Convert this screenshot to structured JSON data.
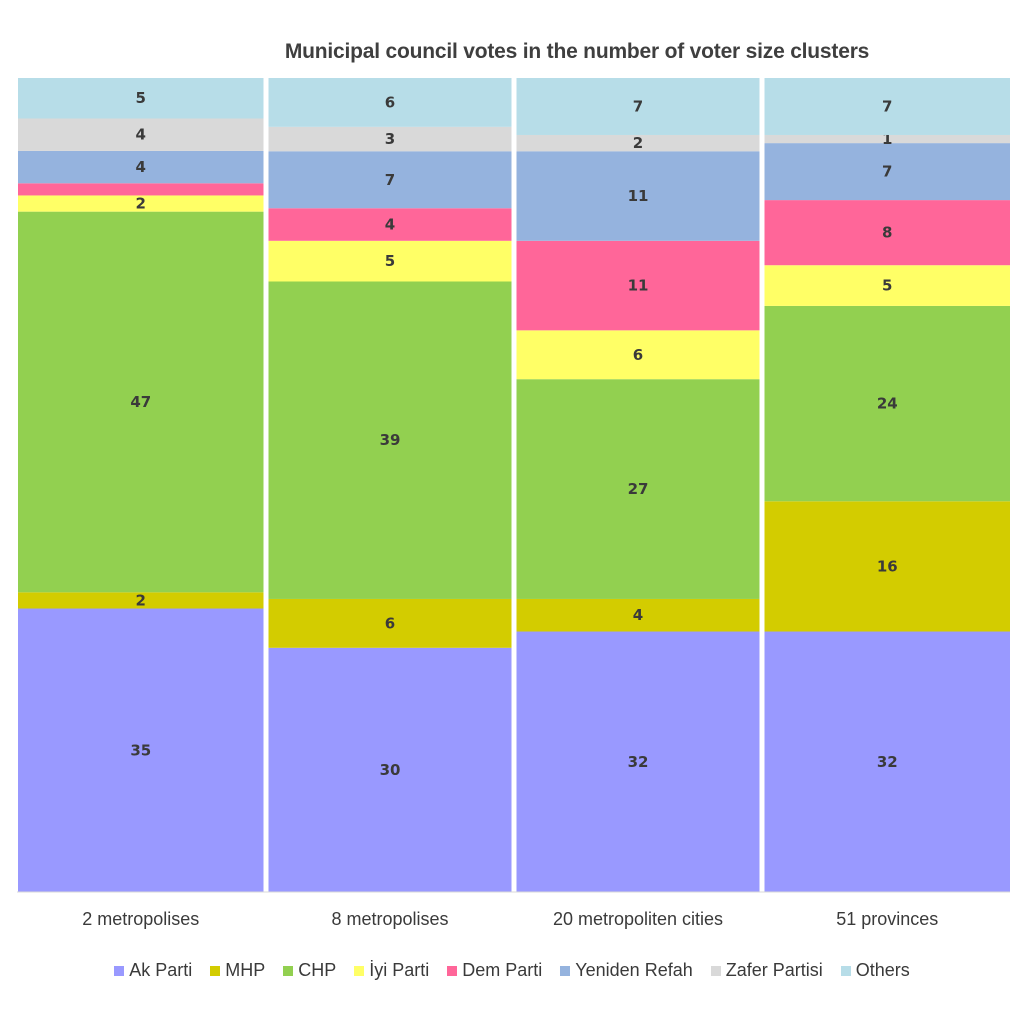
{
  "chart_data": {
    "type": "bar",
    "stacked": "percent",
    "title": "Municipal council votes in the number of voter size clusters",
    "xlabel": "",
    "ylabel": "",
    "ylim": [
      0,
      100
    ],
    "grid": false,
    "legend_position": "bottom",
    "categories": [
      "2 metropolises",
      "8 metropolises",
      "20 metropoliten cities",
      "51 provinces"
    ],
    "series": [
      {
        "name": "Ak Parti",
        "color": "#9999FF",
        "values": [
          35,
          30,
          32,
          32
        ],
        "labels": [
          "35",
          "30",
          "32",
          "32"
        ]
      },
      {
        "name": "MHP",
        "color": "#D3CC00",
        "values": [
          2,
          6,
          4,
          16
        ],
        "labels": [
          "2",
          "6",
          "4",
          "16"
        ]
      },
      {
        "name": "CHP",
        "color": "#92D050",
        "values": [
          47,
          39,
          27,
          24
        ],
        "labels": [
          "47",
          "39",
          "27",
          "24"
        ]
      },
      {
        "name": "İyi Parti",
        "color": "#FFFF66",
        "values": [
          2,
          5,
          6,
          5
        ],
        "labels": [
          "2",
          "5",
          "6",
          "5"
        ]
      },
      {
        "name": "Dem Parti",
        "color": "#FF6699",
        "values": [
          1.5,
          4,
          11,
          8
        ],
        "labels": [
          "",
          "4",
          "11",
          "8"
        ]
      },
      {
        "name": "Yeniden Refah",
        "color": "#95B3DE",
        "values": [
          4,
          7,
          11,
          7
        ],
        "labels": [
          "4",
          "7",
          "11",
          "7"
        ]
      },
      {
        "name": "Zafer Partisi",
        "color": "#D9D9D9",
        "values": [
          4,
          3,
          2,
          1
        ],
        "labels": [
          "4",
          "3",
          "2",
          "1"
        ]
      },
      {
        "name": "Others",
        "color": "#B7DDE8",
        "values": [
          5,
          6,
          7,
          7
        ],
        "labels": [
          "5",
          "6",
          "7",
          "7"
        ]
      }
    ]
  }
}
